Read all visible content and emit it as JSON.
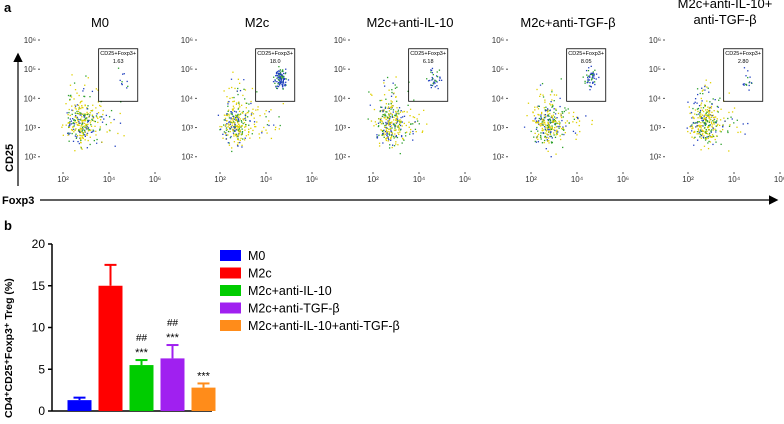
{
  "panel_labels": [
    "a",
    "b"
  ],
  "flow": {
    "ylabel": "CD25",
    "xlabel": "Foxp3",
    "gate_label": "CD25+Foxp3+",
    "xlim": [
      10,
      1000000
    ],
    "ylim": [
      30,
      1000000
    ],
    "log_scale": true,
    "xticks": [
      {
        "value": 100,
        "label": "10²"
      },
      {
        "value": 10000,
        "label": "10⁴"
      },
      {
        "value": 1000000,
        "label": "10⁶"
      }
    ],
    "yticks": [
      {
        "value": 100,
        "label": "10²"
      },
      {
        "value": 1000,
        "label": "10³"
      },
      {
        "value": 10000,
        "label": "10⁴"
      },
      {
        "value": 100000,
        "label": "10⁵"
      },
      {
        "value": 1000000,
        "label": "10⁶"
      }
    ],
    "titles": [
      [
        "M0"
      ],
      [
        "M2c"
      ],
      [
        "M2c+anti-IL-10"
      ],
      [
        "M2c+anti-TGF-β"
      ],
      [
        "M2c+anti-IL-10+",
        "anti-TGF-β"
      ]
    ],
    "values": [
      1.63,
      18.0,
      6.18,
      8.05,
      2.8
    ],
    "value_labels": [
      "1.63",
      "18.0",
      "6.18",
      "8.05",
      "2.80"
    ]
  },
  "chart_data": {
    "type": "bar",
    "ylabel": "CD4⁺CD25⁺Foxp3⁺ Treg (%)",
    "categories": [
      "M0",
      "M2c",
      "M2c+anti-IL-10",
      "M2c+anti-TGF-β",
      "M2c+anti-IL-10+anti-TGF-β"
    ],
    "values": [
      1.3,
      15,
      5.5,
      6.3,
      2.8
    ],
    "errors": [
      0.3,
      2.5,
      0.6,
      1.6,
      0.5
    ],
    "colors": [
      "#0000ff",
      "#ff0000",
      "#00cc00",
      "#a020f0",
      "#ff8c1a"
    ],
    "hash_labels": [
      null,
      null,
      "##",
      "##",
      null
    ],
    "star_labels": [
      null,
      null,
      "***",
      "***",
      "***"
    ],
    "ylim": [
      0,
      20
    ],
    "yticks": [
      0,
      5,
      10,
      15,
      20
    ]
  }
}
